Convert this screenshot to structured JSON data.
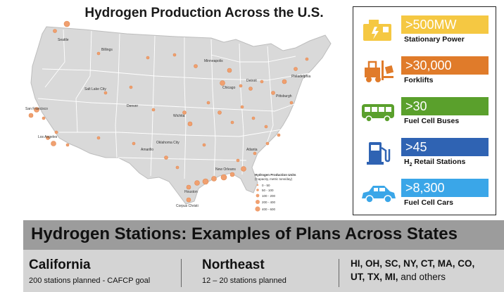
{
  "map": {
    "title": "Hydrogen Production Across the U.S.",
    "cities": [
      "Seattle",
      "Billings",
      "Minneapolis",
      "Salt Lake City",
      "San Francisco",
      "Denver",
      "Wichita",
      "Chicago",
      "Detroit",
      "Pittsburgh",
      "Los Angeles",
      "Oklahoma City",
      "Amarillo",
      "Atlanta",
      "New Orleans",
      "Houston",
      "Corpus Christi",
      "Philadelphia"
    ],
    "legend": {
      "title": "Hydrogen Production Units",
      "subtitle": "(Capacity, metric tons/day)",
      "items": [
        "0 - 50",
        "50 - 100",
        "100 - 200",
        "200 - 400",
        "400 - 600"
      ]
    },
    "colors": {
      "land": "#dcdcdc",
      "border": "#ffffff",
      "dot": "#f0a070"
    }
  },
  "stats": [
    {
      "value": ">500MW",
      "label": "Stationary Power",
      "color": "#f5c842",
      "icon": "stationary-power-icon"
    },
    {
      "value": ">30,000",
      "label": "Forklifts",
      "color": "#e07b2a",
      "icon": "forklift-icon"
    },
    {
      "value": ">30",
      "label": "Fuel Cell Buses",
      "color": "#5aa02c",
      "icon": "bus-icon"
    },
    {
      "value": ">45",
      "label_prefix": "H",
      "label_sub": "2",
      "label_rest": " Retail Stations",
      "color": "#2f63b3",
      "icon": "fuel-pump-icon"
    },
    {
      "value": ">8,300",
      "label": "Fuel Cell Cars",
      "color": "#3aa6e8",
      "icon": "car-icon"
    }
  ],
  "plans": {
    "title": "Hydrogen Stations: Examples of Plans Across States",
    "california": {
      "heading": "California",
      "detail": "200 stations planned - CAFCP goal"
    },
    "northeast": {
      "heading": "Northeast",
      "detail": "12 – 20 stations planned"
    },
    "others": {
      "line1": "HI, OH, SC, NY, CT, MA, CO,",
      "line2_bold": "UT, TX, MI,",
      "line2_rest": " and others"
    }
  }
}
